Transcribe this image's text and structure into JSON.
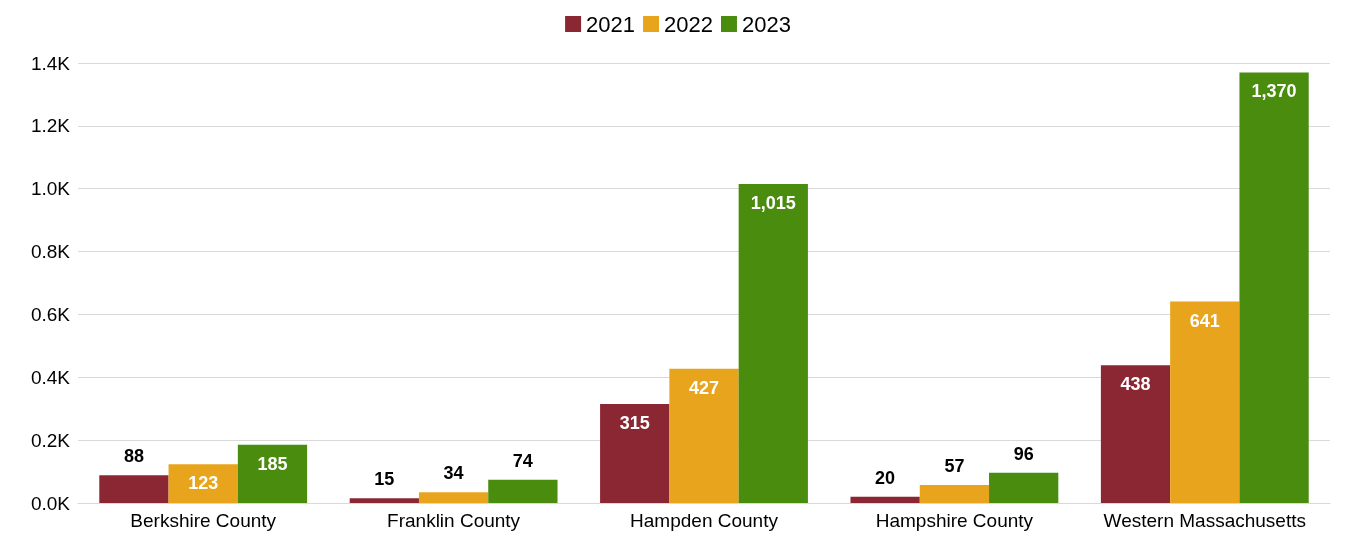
{
  "chart_data": {
    "type": "bar",
    "categories": [
      "Berkshire County",
      "Franklin County",
      "Hampden County",
      "Hampshire County",
      "Western Massachusetts"
    ],
    "series": [
      {
        "name": "2021",
        "color": "#8b2633",
        "values": [
          88,
          15,
          315,
          20,
          438
        ],
        "value_labels": [
          "88",
          "15",
          "315",
          "20",
          "438"
        ]
      },
      {
        "name": "2022",
        "color": "#e8a41c",
        "values": [
          123,
          34,
          427,
          57,
          641
        ],
        "value_labels": [
          "123",
          "34",
          "427",
          "57",
          "641"
        ]
      },
      {
        "name": "2023",
        "color": "#4a8c0e",
        "values": [
          185,
          74,
          1015,
          96,
          1370
        ],
        "value_labels": [
          "185",
          "74",
          "1,015",
          "96",
          "1,370"
        ]
      }
    ],
    "ylim": [
      0,
      1400
    ],
    "yticks": [
      {
        "value": 0,
        "label": "0.0K"
      },
      {
        "value": 200,
        "label": "0.2K"
      },
      {
        "value": 400,
        "label": "0.4K"
      },
      {
        "value": 600,
        "label": "0.6K"
      },
      {
        "value": 800,
        "label": "0.8K"
      },
      {
        "value": 1000,
        "label": "1.0K"
      },
      {
        "value": 1200,
        "label": "1.2K"
      },
      {
        "value": 1400,
        "label": "1.4K"
      }
    ],
    "grid": "y",
    "legend": "top"
  }
}
